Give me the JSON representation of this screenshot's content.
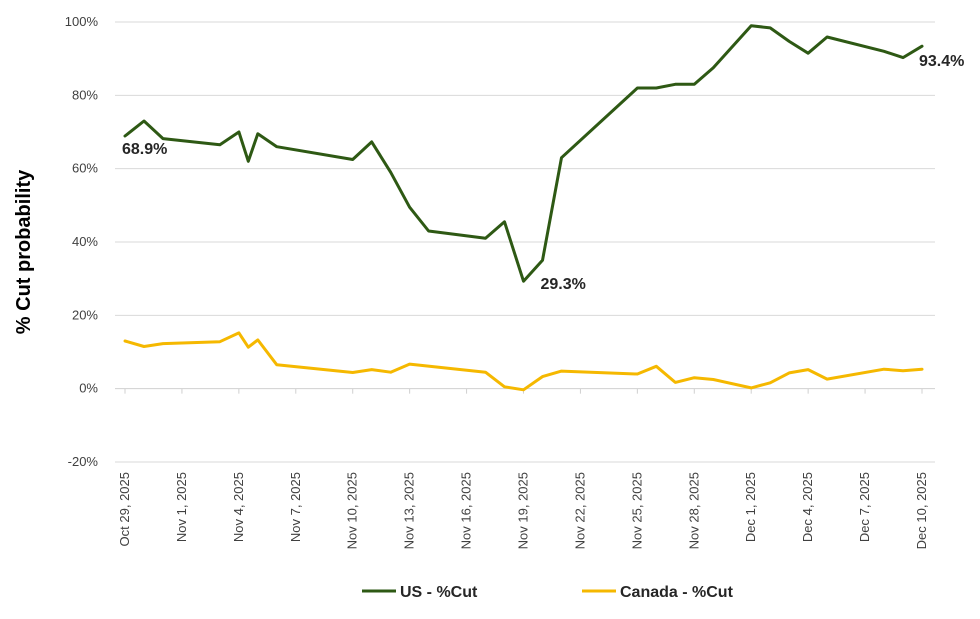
{
  "chart_data": {
    "type": "line",
    "title": "",
    "xlabel": "",
    "ylabel": "% Cut probability",
    "ylim": [
      -20,
      100
    ],
    "yticks": [
      "-20%",
      "0%",
      "20%",
      "40%",
      "60%",
      "80%",
      "100%"
    ],
    "ytick_values": [
      -20,
      0,
      20,
      40,
      60,
      80,
      100
    ],
    "grid": true,
    "legend_position": "bottom",
    "x_range_days": [
      0,
      42
    ],
    "xtick_labels": [
      "Oct 29, 2025",
      "Nov 1, 2025",
      "Nov 4, 2025",
      "Nov 7, 2025",
      "Nov 10, 2025",
      "Nov 13, 2025",
      "Nov 16, 2025",
      "Nov 19, 2025",
      "Nov 22, 2025",
      "Nov 25, 2025",
      "Nov 28, 2025",
      "Dec 1, 2025",
      "Dec 4, 2025",
      "Dec 7, 2025",
      "Dec 10, 2025"
    ],
    "xtick_days": [
      0,
      3,
      6,
      9,
      12,
      15,
      18,
      21,
      24,
      27,
      30,
      33,
      36,
      39,
      42
    ],
    "series": [
      {
        "name": "US - %Cut",
        "color": "#2e5914",
        "x": [
          0,
          1,
          2,
          5,
          6,
          6.5,
          7,
          8,
          12,
          13,
          14,
          15,
          16,
          19,
          20,
          21,
          22,
          23,
          27,
          28,
          29,
          30,
          31,
          33,
          34,
          35,
          36,
          37,
          40,
          41,
          42
        ],
        "values": [
          68.9,
          73,
          68.2,
          66.5,
          70,
          62,
          69.5,
          66,
          62.5,
          67.3,
          59,
          49.5,
          43,
          41,
          45.5,
          29.3,
          35,
          63,
          82,
          82,
          83,
          83,
          87.5,
          99,
          98.4,
          94.7,
          91.5,
          95.9,
          92,
          90.3,
          93.4
        ]
      },
      {
        "name": "Canada - %Cut",
        "color": "#f5b800",
        "x": [
          0,
          1,
          2,
          5,
          6,
          6.5,
          7,
          8,
          12,
          13,
          14,
          15,
          19,
          20,
          21,
          22,
          23,
          27,
          28,
          29,
          30,
          31,
          33,
          34,
          35,
          36,
          37,
          40,
          41,
          42
        ],
        "values": [
          13,
          11.5,
          12.3,
          12.8,
          15.2,
          11.3,
          13.3,
          6.5,
          4.4,
          5.2,
          4.5,
          6.7,
          4.5,
          0.5,
          -0.3,
          3.3,
          4.8,
          4,
          6.1,
          1.7,
          3,
          2.5,
          0.2,
          1.6,
          4.3,
          5.2,
          2.6,
          5.3,
          4.9,
          5.3
        ]
      }
    ],
    "annotations": [
      {
        "series": 0,
        "point_index": 0,
        "text": "68.9%"
      },
      {
        "series": 0,
        "point_index": 15,
        "text": "29.3%"
      },
      {
        "series": 0,
        "point_index": 30,
        "text": "93.4%"
      }
    ]
  }
}
